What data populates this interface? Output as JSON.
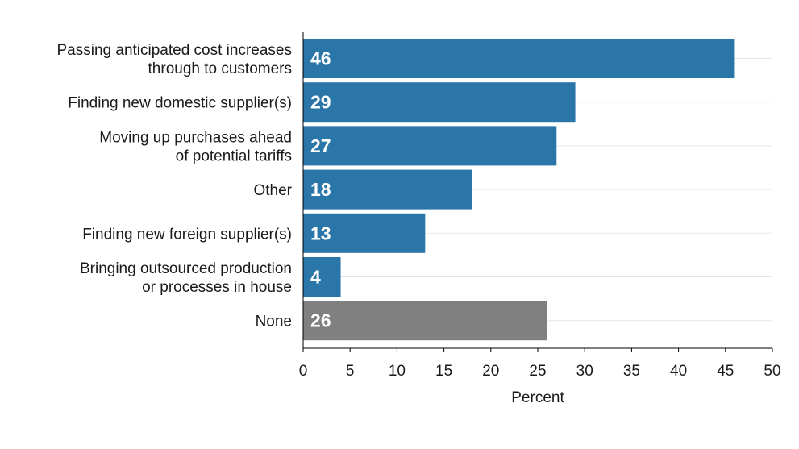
{
  "chart_data": {
    "type": "bar",
    "orientation": "horizontal",
    "categories": [
      [
        "Passing anticipated cost increases",
        "through to customers"
      ],
      [
        "Finding new domestic supplier(s)"
      ],
      [
        "Moving up purchases ahead",
        "of potential tariffs"
      ],
      [
        "Other"
      ],
      [
        "Finding new foreign supplier(s)"
      ],
      [
        "Bringing outsourced production",
        "or processes in house"
      ],
      [
        "None"
      ]
    ],
    "values": [
      46,
      29,
      27,
      18,
      13,
      4,
      26
    ],
    "value_labels": [
      "46",
      "29",
      "27",
      "18",
      "13",
      "4",
      "26"
    ],
    "bar_colors": [
      "#2a76a9",
      "#2a76a9",
      "#2a76a9",
      "#2a76a9",
      "#2a76a9",
      "#2a76a9",
      "#808080"
    ],
    "title": "",
    "xlabel": "Percent",
    "ylabel": "",
    "xlim": [
      0,
      50
    ],
    "xticks": [
      0,
      5,
      10,
      15,
      20,
      25,
      30,
      35,
      40,
      45,
      50
    ],
    "xtick_labels": [
      "0",
      "5",
      "10",
      "15",
      "20",
      "25",
      "30",
      "35",
      "40",
      "45",
      "50"
    ],
    "grid": true,
    "legend": false
  }
}
